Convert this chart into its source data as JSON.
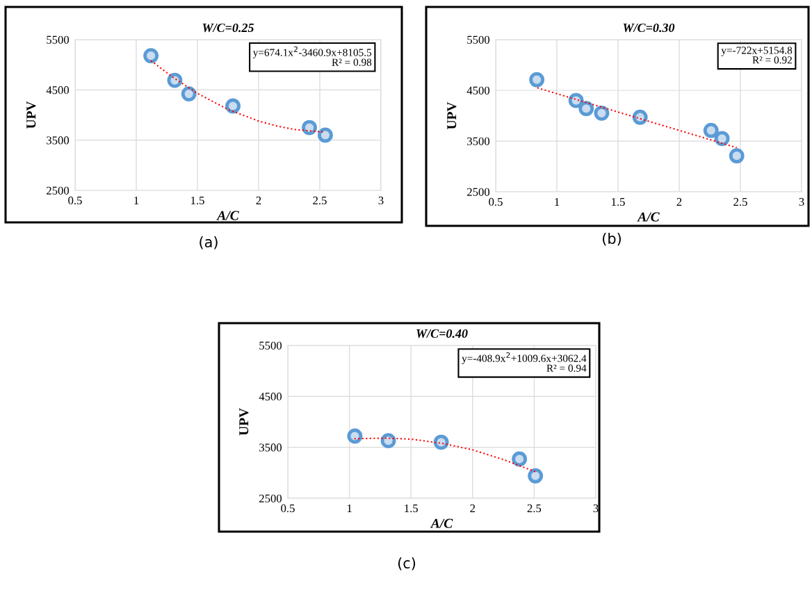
{
  "chart_data": [
    {
      "type": "scatter",
      "title": "W/C=0.25",
      "xlabel": "A/C",
      "ylabel": "UPV",
      "xlim": [
        0.5,
        3
      ],
      "xticks": [
        0.5,
        1,
        1.5,
        2,
        2.5,
        3
      ],
      "ylim": [
        2500,
        5500
      ],
      "yticks": [
        2500,
        3500,
        4500,
        5500
      ],
      "grid": true,
      "legend": false,
      "marker": "circle",
      "annotations": [
        "y=674.1x$^{2}$-3460.9x+8105.5",
        "R² = 0.98",
        "(a)"
      ],
      "series": [
        {
          "color": "#5b9bd5",
          "x": [
            1.12,
            1.315,
            1.43,
            1.79,
            2.415,
            2.545
          ],
          "values": [
            5180,
            4690,
            4420,
            4180,
            3750,
            3600
          ]
        },
        {
          "type": "line",
          "color": "#ff0000",
          "line_style": "dotted",
          "marker": "none",
          "x": [
            1.12,
            1.3,
            1.5,
            1.75,
            2.0,
            2.15,
            2.3,
            2.545
          ],
          "values": [
            5080,
            4750,
            4430,
            4110,
            3880,
            3780,
            3710,
            3660
          ]
        }
      ]
    },
    {
      "type": "scatter",
      "title": "W/C=0.30",
      "xlabel": "A/C",
      "ylabel": "UPV",
      "xlim": [
        0.5,
        3
      ],
      "xticks": [
        0.5,
        1,
        1.5,
        2,
        2.5,
        3
      ],
      "ylim": [
        2500,
        5500
      ],
      "yticks": [
        2500,
        3500,
        4500,
        5500
      ],
      "grid": true,
      "legend": false,
      "marker": "circle",
      "annotations": [
        "y=-722x+5154.8",
        "R² = 0.92",
        "(b)"
      ],
      "series": [
        {
          "color": "#5b9bd5",
          "x": [
            0.836,
            1.157,
            1.24,
            1.366,
            1.68,
            2.26,
            2.35,
            2.47
          ],
          "values": [
            4710,
            4300,
            4140,
            4050,
            3970,
            3710,
            3550,
            3210
          ]
        },
        {
          "type": "line",
          "color": "#ff0000",
          "line_style": "dotted",
          "marker": "none",
          "x": [
            0.84,
            2.47
          ],
          "values": [
            4550,
            3370
          ]
        }
      ]
    },
    {
      "type": "scatter",
      "title": "W/C=0.40",
      "xlabel": "A/C",
      "ylabel": "UPV",
      "xlim": [
        0.5,
        3
      ],
      "xticks": [
        0.5,
        1,
        1.5,
        2,
        2.5,
        3
      ],
      "ylim": [
        2500,
        5500
      ],
      "yticks": [
        2500,
        3500,
        4500,
        5500
      ],
      "grid": true,
      "legend": false,
      "marker": "circle",
      "annotations": [
        "y=-408.9x$^{2}$+1009.6x+3062.4",
        "R² = 0.94",
        "(c)"
      ],
      "series": [
        {
          "color": "#5b9bd5",
          "x": [
            1.044,
            1.316,
            1.745,
            2.38,
            2.51
          ],
          "values": [
            3720,
            3630,
            3600,
            3270,
            2940
          ]
        },
        {
          "type": "line",
          "color": "#ff0000",
          "line_style": "dotted",
          "marker": "none",
          "x": [
            1.04,
            1.3,
            1.5,
            1.75,
            2.0,
            2.25,
            2.51
          ],
          "values": [
            3670,
            3680,
            3660,
            3580,
            3450,
            3260,
            3020
          ]
        }
      ]
    }
  ]
}
